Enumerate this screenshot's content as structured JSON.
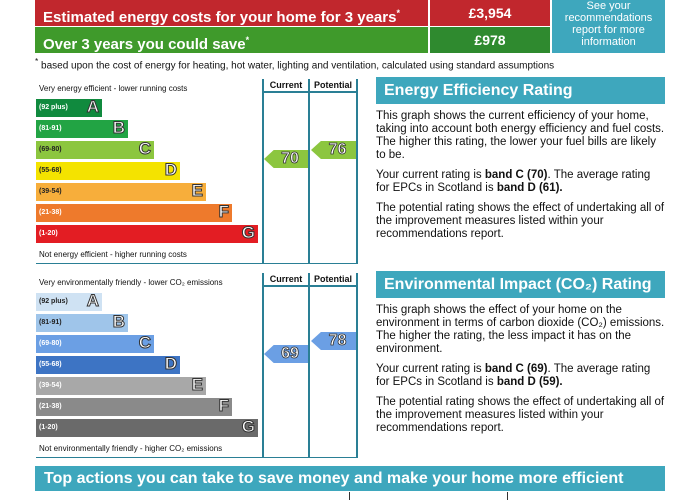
{
  "costs": {
    "estimated_label": "Estimated energy costs for your home for 3 years",
    "estimated_value": "£3,954",
    "save_label": "Over 3 years you could save",
    "save_value": "£978",
    "asterisk": "*",
    "see_report": "See your recommendations report for more information",
    "footnote": "based upon the cost of energy for heating, hot water, lighting and ventilation, calculated using standard assumptions"
  },
  "colors": {
    "teal": "#3ea7bd",
    "red": "#c1272d",
    "green": "#3f9a2b"
  },
  "energy_chart": {
    "top_caption": "Very energy efficient - lower running costs",
    "bottom_caption": "Not energy efficient - higher running costs",
    "current_header": "Current",
    "potential_header": "Potential",
    "current": "70",
    "potential": "76",
    "bands": [
      {
        "range": "(92 plus)",
        "letter": "A",
        "color": "#108a3e"
      },
      {
        "range": "(81-91)",
        "letter": "B",
        "color": "#22a444"
      },
      {
        "range": "(69-80)",
        "letter": "C",
        "color": "#8cc63f"
      },
      {
        "range": "(55-68)",
        "letter": "D",
        "color": "#f4e300"
      },
      {
        "range": "(39-54)",
        "letter": "E",
        "color": "#f7ae3b"
      },
      {
        "range": "(21-38)",
        "letter": "F",
        "color": "#ee7a2c"
      },
      {
        "range": "(1-20)",
        "letter": "G",
        "color": "#e31d23"
      }
    ]
  },
  "env_chart": {
    "top_caption": "Very environmentally friendly - lower CO₂ emissions",
    "bottom_caption": "Not environmentally friendly - higher CO₂ emissions",
    "current_header": "Current",
    "potential_header": "Potential",
    "current": "69",
    "potential": "78",
    "bands": [
      {
        "range": "(92 plus)",
        "letter": "A",
        "color": "#cfe2f3"
      },
      {
        "range": "(81-91)",
        "letter": "B",
        "color": "#9fc5ea"
      },
      {
        "range": "(69-80)",
        "letter": "C",
        "color": "#6b9fe4"
      },
      {
        "range": "(55-68)",
        "letter": "D",
        "color": "#3d74c4"
      },
      {
        "range": "(39-54)",
        "letter": "E",
        "color": "#a8a8a8"
      },
      {
        "range": "(21-38)",
        "letter": "F",
        "color": "#8a8a8a"
      },
      {
        "range": "(1-20)",
        "letter": "G",
        "color": "#6a6a6a"
      }
    ]
  },
  "eer": {
    "title": "Energy Efficiency Rating",
    "p1": "This graph shows the current efficiency of your home, taking into account both energy efficiency and fuel costs. The higher this rating, the lower your fuel bills are likely to be.",
    "p2a": "Your current rating is ",
    "p2b": "band C (70)",
    "p2c": ". The average rating for EPCs in Scotland is ",
    "p2d": "band D (61).",
    "p3": "The potential rating shows the effect of undertaking all of the improvement measures listed within your recommendations report."
  },
  "eir": {
    "title": "Environmental Impact (CO₂) Rating",
    "p1": "This graph shows the effect of your home on the environment in terms of carbon dioxide (CO₂) emissions. The higher the rating, the less impact it has on the environment.",
    "p2a": "Your current rating is ",
    "p2b": "band C (69)",
    "p2c": ". The average rating for EPCs in Scotland is ",
    "p2d": "band D (59).",
    "p3": "The potential rating shows the effect of undertaking all of the improvement measures listed within your recommendations report."
  },
  "banner": "Top actions you can take to save money and make your home more efficient"
}
